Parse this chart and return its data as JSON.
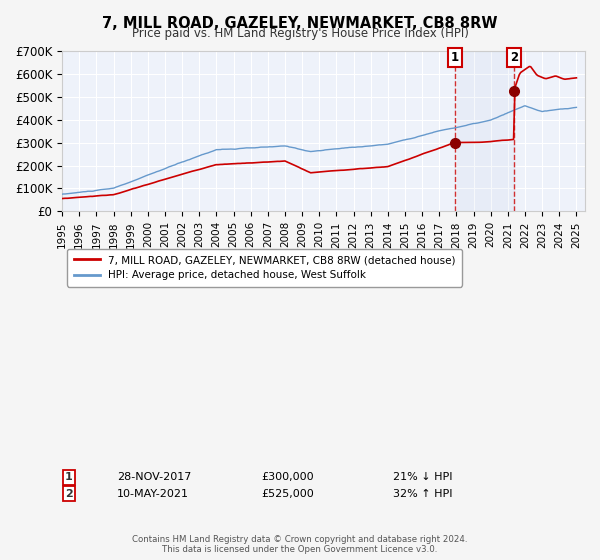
{
  "title": "7, MILL ROAD, GAZELEY, NEWMARKET, CB8 8RW",
  "subtitle": "Price paid vs. HM Land Registry's House Price Index (HPI)",
  "ylim": [
    0,
    700000
  ],
  "yticks": [
    0,
    100000,
    200000,
    300000,
    400000,
    500000,
    600000,
    700000
  ],
  "ytick_labels": [
    "£0",
    "£100K",
    "£200K",
    "£300K",
    "£400K",
    "£500K",
    "£600K",
    "£700K"
  ],
  "hpi_color": "#6699cc",
  "price_color": "#cc0000",
  "bg_color": "#eef2fa",
  "sale1_year": 2017.91,
  "sale1_price": 300000,
  "sale1_date": "28-NOV-2017",
  "sale1_amount": "£300,000",
  "sale1_pct": "21% ↓ HPI",
  "sale2_year": 2021.36,
  "sale2_price": 525000,
  "sale2_date": "10-MAY-2021",
  "sale2_amount": "£525,000",
  "sale2_pct": "32% ↑ HPI",
  "legend_line1": "7, MILL ROAD, GAZELEY, NEWMARKET, CB8 8RW (detached house)",
  "legend_line2": "HPI: Average price, detached house, West Suffolk",
  "footer1": "Contains HM Land Registry data © Crown copyright and database right 2024.",
  "footer2": "This data is licensed under the Open Government Licence v3.0."
}
